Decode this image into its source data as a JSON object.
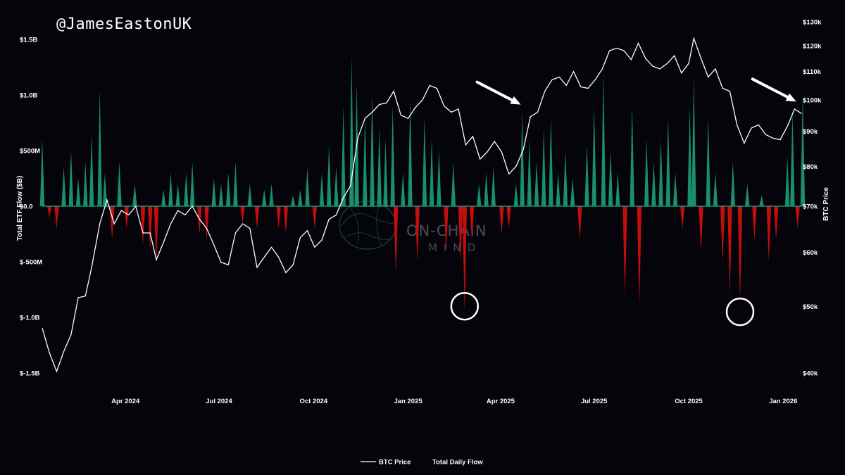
{
  "watermark": {
    "handle": "@JamesEastonUK",
    "brand_line1": "ON-CHAIN",
    "brand_line2": "MIND"
  },
  "chart_data": {
    "type": "bar",
    "background": "#04040a",
    "grid": false,
    "xlabel": "",
    "x_ticks": [
      "Apr 2024",
      "Jul 2024",
      "Oct 2024",
      "Jan 2025",
      "Apr 2025",
      "Jul 2025",
      "Oct 2025",
      "Jan 2026"
    ],
    "y_left": {
      "label": "Total ETF Flow ($B)",
      "ticks": [
        "$1.5B",
        "$1.0B",
        "$500M",
        "$0.0",
        "$-500M",
        "$-1.0B",
        "$-1.5B"
      ],
      "ylim": [
        -1.5,
        1.5
      ]
    },
    "y_right": {
      "label": "BTC Price",
      "scale": "log",
      "ticks": [
        "$130k",
        "$120k",
        "$110k",
        "$100k",
        "$90k",
        "$80k",
        "$70k",
        "$60k",
        "$50k",
        "$40k"
      ],
      "ylim": [
        40,
        130
      ]
    },
    "legend": {
      "placement": "bottom-center",
      "entries": [
        "BTC Price",
        "Total Daily Flow"
      ]
    },
    "colors": {
      "inflow": "#1a8f6c",
      "outflow": "#c40d0d",
      "price": "#ffffff",
      "annotation": "#ffffff"
    },
    "series": [
      {
        "name": "Total Daily Flow",
        "type": "bar",
        "unit": "$B",
        "x": [
          "2024-01-11",
          "2024-01-18",
          "2024-01-25",
          "2024-02-01",
          "2024-02-08",
          "2024-02-15",
          "2024-02-22",
          "2024-02-28",
          "2024-03-07",
          "2024-03-12",
          "2024-03-19",
          "2024-03-26",
          "2024-04-02",
          "2024-04-10",
          "2024-04-18",
          "2024-04-25",
          "2024-05-01",
          "2024-05-08",
          "2024-05-15",
          "2024-05-22",
          "2024-05-30",
          "2024-06-05",
          "2024-06-12",
          "2024-06-19",
          "2024-06-26",
          "2024-07-03",
          "2024-07-10",
          "2024-07-17",
          "2024-07-24",
          "2024-07-31",
          "2024-08-07",
          "2024-08-14",
          "2024-08-21",
          "2024-08-28",
          "2024-09-04",
          "2024-09-11",
          "2024-09-18",
          "2024-09-25",
          "2024-10-02",
          "2024-10-09",
          "2024-10-16",
          "2024-10-23",
          "2024-10-30",
          "2024-11-07",
          "2024-11-12",
          "2024-11-20",
          "2024-11-27",
          "2024-12-04",
          "2024-12-10",
          "2024-12-17",
          "2024-12-20",
          "2024-12-27",
          "2025-01-03",
          "2025-01-10",
          "2025-01-17",
          "2025-01-24",
          "2025-01-31",
          "2025-02-07",
          "2025-02-14",
          "2025-02-21",
          "2025-02-25",
          "2025-03-04",
          "2025-03-11",
          "2025-03-18",
          "2025-03-25",
          "2025-04-02",
          "2025-04-09",
          "2025-04-16",
          "2025-04-22",
          "2025-04-29",
          "2025-05-06",
          "2025-05-13",
          "2025-05-20",
          "2025-05-27",
          "2025-06-03",
          "2025-06-10",
          "2025-06-17",
          "2025-06-24",
          "2025-07-01",
          "2025-07-10",
          "2025-07-17",
          "2025-07-24",
          "2025-07-31",
          "2025-08-07",
          "2025-08-14",
          "2025-08-21",
          "2025-08-28",
          "2025-09-04",
          "2025-09-11",
          "2025-09-18",
          "2025-09-25",
          "2025-10-02",
          "2025-10-06",
          "2025-10-13",
          "2025-10-20",
          "2025-10-27",
          "2025-11-03",
          "2025-11-10",
          "2025-11-13",
          "2025-11-20",
          "2025-11-27",
          "2025-12-04",
          "2025-12-11",
          "2025-12-18",
          "2025-12-25",
          "2026-01-05",
          "2026-01-10",
          "2026-01-15",
          "2026-01-20"
        ],
        "values": [
          0.6,
          -0.1,
          -0.2,
          0.35,
          0.5,
          0.25,
          0.4,
          0.65,
          1.05,
          0.3,
          -0.3,
          0.4,
          -0.2,
          0.2,
          -0.35,
          -0.4,
          -0.5,
          0.15,
          0.3,
          0.2,
          0.3,
          0.4,
          -0.25,
          -0.3,
          0.25,
          0.2,
          0.3,
          0.4,
          -0.15,
          0.2,
          -0.2,
          0.15,
          0.2,
          -0.2,
          -0.25,
          0.1,
          0.15,
          0.35,
          -0.2,
          0.3,
          0.55,
          0.35,
          0.9,
          1.35,
          1.1,
          0.8,
          1.0,
          0.7,
          0.6,
          0.9,
          -0.6,
          0.3,
          0.95,
          -0.5,
          0.8,
          0.6,
          0.5,
          -0.4,
          0.4,
          -0.5,
          -0.95,
          -0.3,
          0.2,
          0.3,
          0.35,
          -0.25,
          -0.2,
          0.2,
          0.85,
          0.6,
          0.4,
          0.7,
          0.8,
          0.3,
          0.5,
          0.25,
          -0.3,
          0.55,
          0.9,
          1.2,
          0.5,
          0.3,
          -0.8,
          0.9,
          -0.9,
          0.6,
          0.4,
          0.6,
          0.8,
          0.3,
          -0.2,
          0.9,
          1.15,
          -0.4,
          0.8,
          0.3,
          -0.5,
          -0.8,
          0.4,
          -0.85,
          0.2,
          -0.3,
          0.1,
          -0.5,
          -0.3,
          0.45,
          0.85,
          -0.2,
          1.0
        ]
      },
      {
        "name": "BTC Price",
        "type": "line",
        "unit": "$k",
        "x": [
          "2024-01-11",
          "2024-01-18",
          "2024-01-25",
          "2024-02-01",
          "2024-02-08",
          "2024-02-15",
          "2024-02-22",
          "2024-02-28",
          "2024-03-07",
          "2024-03-14",
          "2024-03-21",
          "2024-03-28",
          "2024-04-04",
          "2024-04-11",
          "2024-04-18",
          "2024-04-25",
          "2024-05-01",
          "2024-05-08",
          "2024-05-15",
          "2024-05-22",
          "2024-05-29",
          "2024-06-05",
          "2024-06-12",
          "2024-06-19",
          "2024-06-26",
          "2024-07-03",
          "2024-07-10",
          "2024-07-17",
          "2024-07-24",
          "2024-07-31",
          "2024-08-07",
          "2024-08-14",
          "2024-08-21",
          "2024-08-28",
          "2024-09-04",
          "2024-09-11",
          "2024-09-18",
          "2024-09-25",
          "2024-10-02",
          "2024-10-09",
          "2024-10-16",
          "2024-10-23",
          "2024-10-30",
          "2024-11-06",
          "2024-11-13",
          "2024-11-20",
          "2024-11-27",
          "2024-12-04",
          "2024-12-11",
          "2024-12-18",
          "2024-12-25",
          "2025-01-01",
          "2025-01-08",
          "2025-01-15",
          "2025-01-22",
          "2025-01-29",
          "2025-02-05",
          "2025-02-12",
          "2025-02-19",
          "2025-02-26",
          "2025-03-05",
          "2025-03-12",
          "2025-03-19",
          "2025-03-26",
          "2025-04-02",
          "2025-04-09",
          "2025-04-16",
          "2025-04-23",
          "2025-04-30",
          "2025-05-07",
          "2025-05-14",
          "2025-05-21",
          "2025-05-28",
          "2025-06-04",
          "2025-06-11",
          "2025-06-18",
          "2025-06-25",
          "2025-07-02",
          "2025-07-09",
          "2025-07-16",
          "2025-07-23",
          "2025-07-30",
          "2025-08-06",
          "2025-08-13",
          "2025-08-20",
          "2025-08-27",
          "2025-09-03",
          "2025-09-10",
          "2025-09-17",
          "2025-09-24",
          "2025-10-01",
          "2025-10-06",
          "2025-10-13",
          "2025-10-20",
          "2025-10-27",
          "2025-11-03",
          "2025-11-10",
          "2025-11-17",
          "2025-11-24",
          "2025-12-01",
          "2025-12-08",
          "2025-12-15",
          "2025-12-22",
          "2025-12-29",
          "2026-01-05",
          "2026-01-12",
          "2026-01-19"
        ],
        "values": [
          46.5,
          42.8,
          40.2,
          43,
          45.5,
          51.5,
          51.8,
          57,
          66,
          71.5,
          66,
          69,
          68,
          70,
          64,
          64,
          58.5,
          62,
          66,
          69,
          68,
          70,
          67,
          65,
          61.5,
          58,
          57.5,
          64,
          66,
          65,
          57,
          59,
          61,
          59,
          56,
          57.5,
          63,
          64.5,
          61,
          62.5,
          67,
          68,
          72,
          75,
          88,
          94,
          96,
          98.5,
          99,
          103,
          95,
          94,
          97.5,
          100,
          105,
          104,
          98,
          96,
          97,
          86,
          88.5,
          82,
          84,
          87,
          84,
          78,
          80,
          84.5,
          94.5,
          96,
          103,
          107,
          108,
          105,
          110,
          104.5,
          104,
          107,
          111,
          118,
          119,
          118,
          114.5,
          121,
          115,
          112,
          111,
          113,
          116,
          109.5,
          113,
          123,
          115,
          108,
          111,
          104,
          103,
          92,
          86.5,
          91,
          92,
          89,
          88,
          87.5,
          91.5,
          97,
          95.5
        ]
      }
    ],
    "annotations": [
      {
        "type": "arrow",
        "target_date": "2025-04-22",
        "target_price_k": 98
      },
      {
        "type": "arrow",
        "target_date": "2026-01-15",
        "target_price_k": 99
      },
      {
        "type": "circle",
        "date": "2025-02-25",
        "flow_b": -0.9
      },
      {
        "type": "circle",
        "date": "2025-11-20",
        "flow_b": -0.95
      }
    ]
  }
}
